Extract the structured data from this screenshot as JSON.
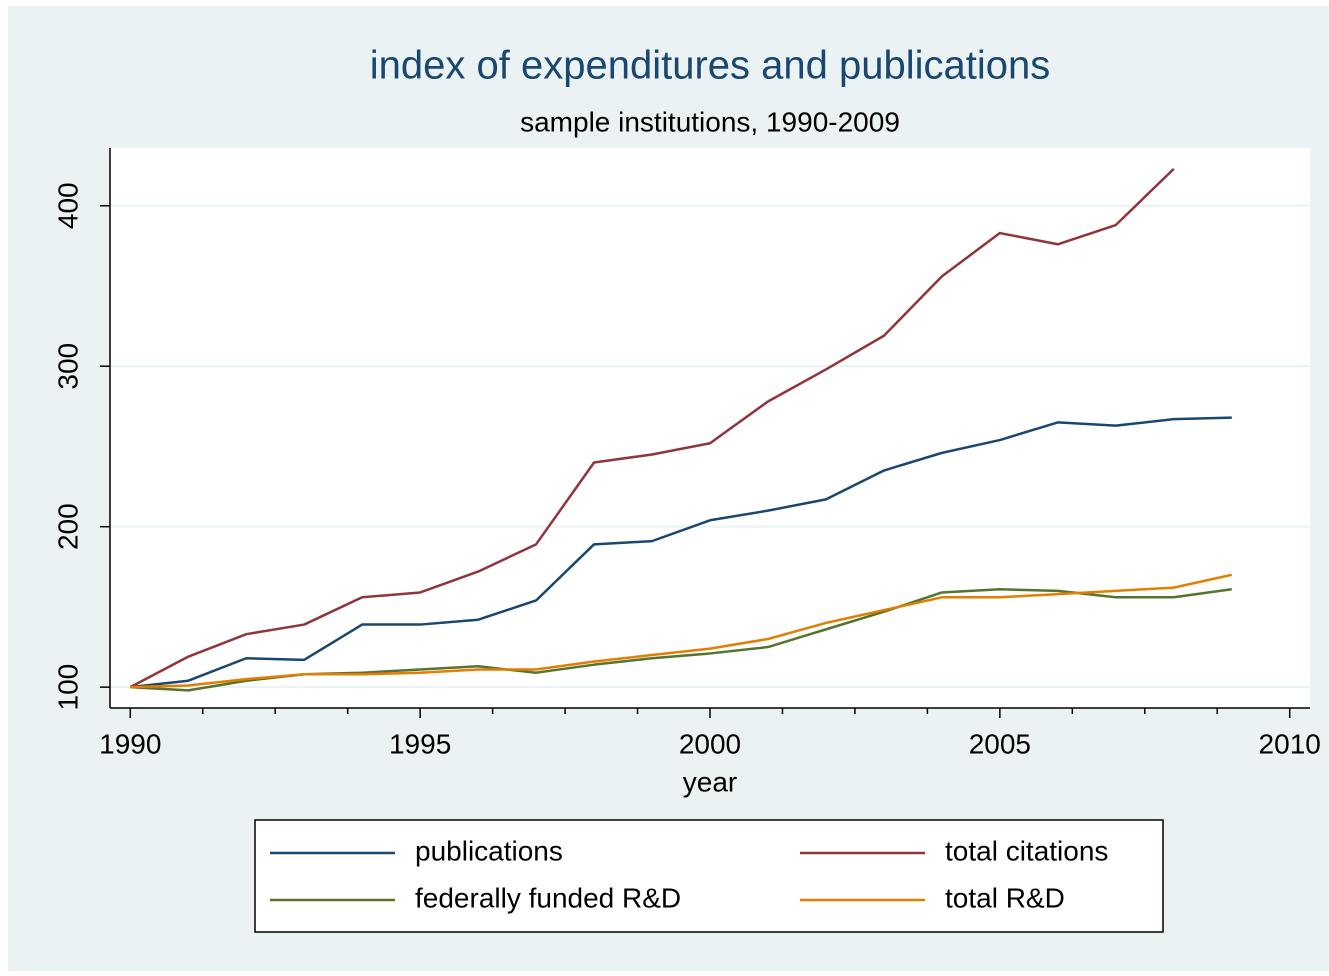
{
  "chart_data": {
    "type": "line",
    "title": "index of expenditures and publications",
    "subtitle": "sample institutions, 1990-2009",
    "x_label": "year",
    "x": [
      1990,
      1991,
      1992,
      1993,
      1994,
      1995,
      1996,
      1997,
      1998,
      1999,
      2000,
      2001,
      2002,
      2003,
      2004,
      2005,
      2006,
      2007,
      2008,
      2009
    ],
    "series": [
      {
        "name": "publications",
        "color": "#1a476f",
        "values": [
          100,
          104,
          118,
          117,
          139,
          139,
          142,
          154,
          189,
          191,
          204,
          210,
          217,
          235,
          246,
          254,
          265,
          263,
          267,
          268
        ]
      },
      {
        "name": "total citations",
        "color": "#90353b",
        "values": [
          100,
          119,
          133,
          139,
          156,
          159,
          172,
          189,
          240,
          245,
          252,
          278,
          298,
          319,
          356,
          383,
          376,
          388,
          423,
          null
        ]
      },
      {
        "name": "federally funded R&D",
        "color": "#55752f",
        "values": [
          100,
          98,
          104,
          108,
          109,
          111,
          113,
          109,
          114,
          118,
          121,
          125,
          136,
          147,
          159,
          161,
          160,
          156,
          156,
          161
        ]
      },
      {
        "name": "total R&D",
        "color": "#e37e00",
        "values": [
          100,
          101,
          105,
          108,
          108,
          109,
          111,
          111,
          116,
          120,
          124,
          130,
          140,
          148,
          156,
          156,
          158,
          160,
          162,
          170
        ]
      }
    ],
    "xlim": [
      1989.65,
      2010.35
    ],
    "xticks": [
      1990,
      1995,
      2000,
      2005,
      2010
    ],
    "xminorticks": [
      1991.25,
      1992.5,
      1993.75,
      1996.25,
      1997.5,
      1998.75,
      2001.25,
      2002.5,
      2003.75,
      2006.25,
      2007.5,
      2008.75
    ],
    "ylim": [
      87,
      436
    ],
    "yticks": [
      100,
      200,
      300,
      400
    ],
    "grid": true,
    "legend": "bottom"
  }
}
